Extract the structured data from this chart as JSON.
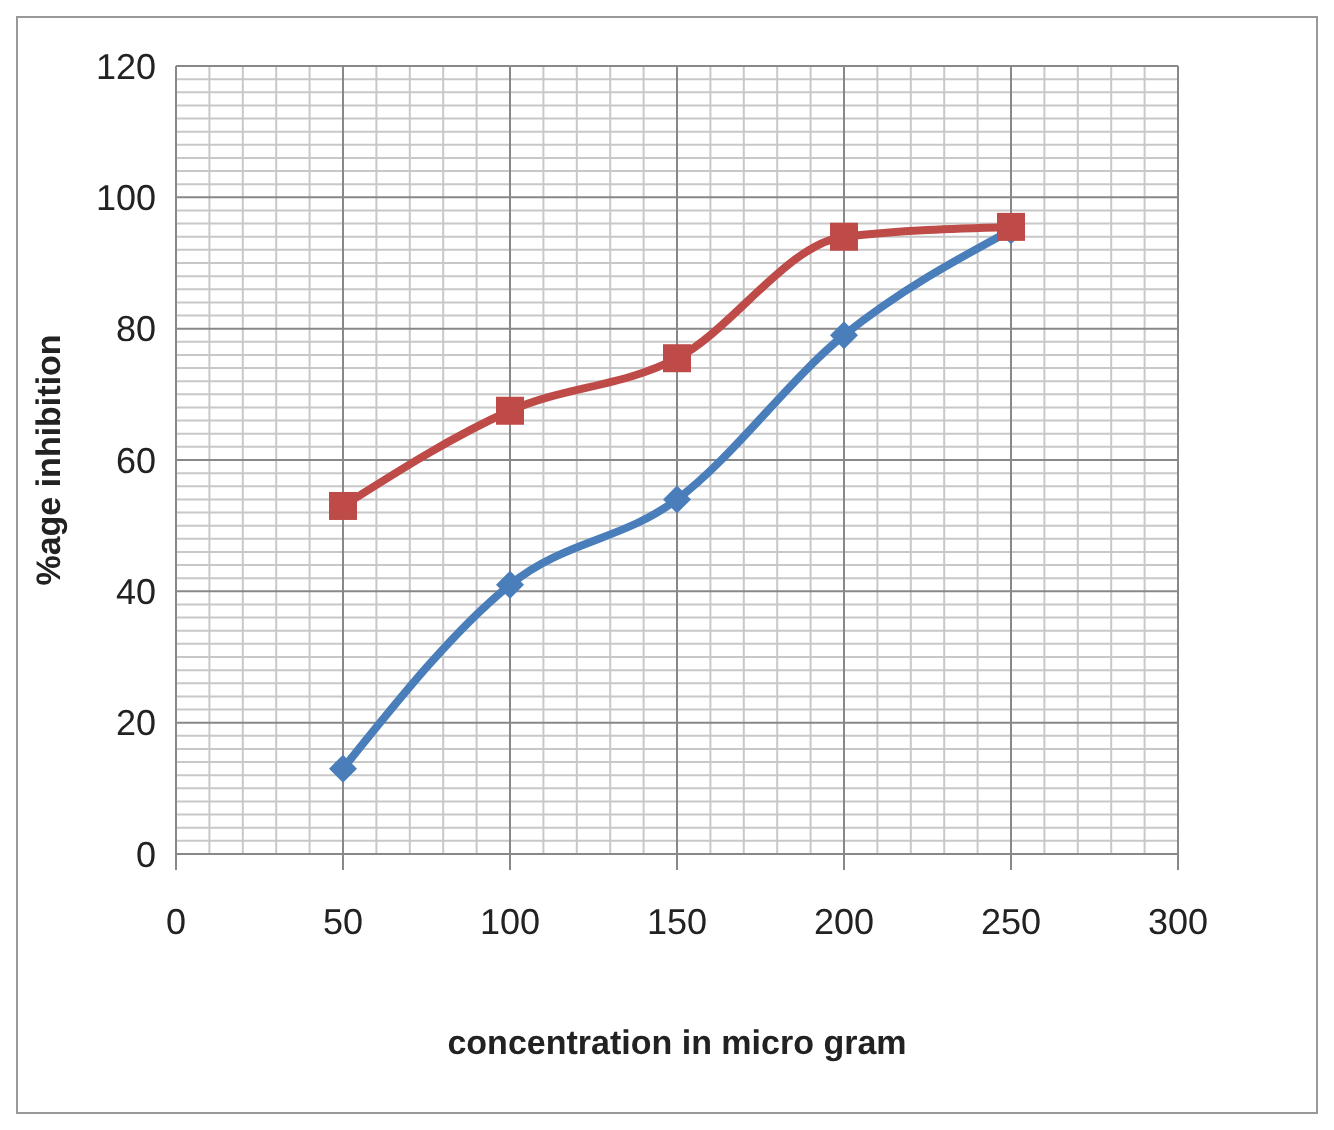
{
  "chart_data": {
    "type": "line",
    "xlabel": "concentration in micro gram",
    "ylabel": "%age inhibition",
    "x": [
      50,
      100,
      150,
      200,
      250
    ],
    "series": [
      {
        "color": "#4a7ebb",
        "values": [
          13,
          41,
          54,
          79,
          95
        ],
        "marker": "diamond"
      },
      {
        "color": "#be4b48",
        "values": [
          53,
          67.5,
          75.5,
          94,
          95.5
        ],
        "marker": "square"
      }
    ],
    "xlim": [
      0,
      300
    ],
    "xticks": [
      0,
      50,
      100,
      150,
      200,
      250,
      300
    ],
    "ylim": [
      0,
      120
    ],
    "yticks": [
      0,
      20,
      40,
      60,
      80,
      100,
      120
    ],
    "grid": true
  }
}
